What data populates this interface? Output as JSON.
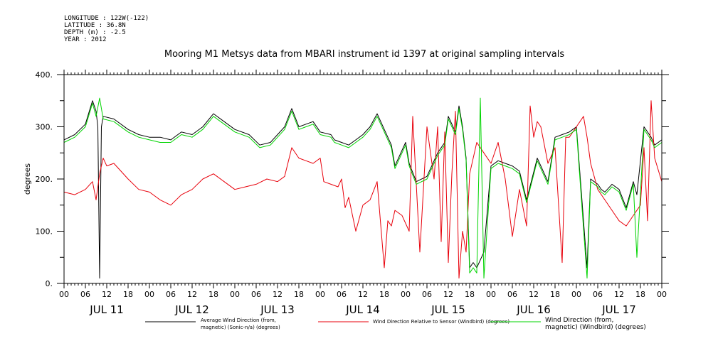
{
  "meta": {
    "longitude": "LONGITUDE : 122W(-122)",
    "latitude": "LATITUDE : 36.8N",
    "depth": "DEPTH (m) : -2.5",
    "year": "YEAR : 2012"
  },
  "chart_data": {
    "type": "line",
    "title": "Mooring M1 Metsys data from MBARI instrument id 1397 at original sampling intervals",
    "ylabel": "degrees",
    "xlabel": "",
    "ylim": [
      0,
      400
    ],
    "yticks": [
      "0.",
      "100.",
      "200.",
      "300.",
      "400."
    ],
    "xlim_hours": [
      0,
      168
    ],
    "hour_ticks": [
      "00",
      "06",
      "12",
      "18",
      "00",
      "06",
      "12",
      "18",
      "00",
      "06",
      "12",
      "18",
      "00",
      "06",
      "12",
      "18",
      "00",
      "06",
      "12",
      "18",
      "00",
      "06",
      "12",
      "18",
      "00",
      "06",
      "12",
      "18",
      "00"
    ],
    "date_labels": [
      "JUL 11",
      "JUL 12",
      "JUL 13",
      "JUL 14",
      "JUL 15",
      "JUL 16",
      "JUL 17"
    ],
    "grid": false,
    "legend_position": "bottom",
    "series": [
      {
        "name_line1": "Average Wind Direction (from,",
        "name_line2": "magnetic) (Sonic-n/a) (degrees)",
        "color": "#000000",
        "x": [
          0,
          3,
          6,
          8,
          9,
          9.5,
          10,
          10.5,
          11,
          14,
          18,
          21,
          24,
          27,
          30,
          33,
          36,
          39,
          42,
          45,
          48,
          52,
          55,
          58,
          60,
          62,
          64,
          66,
          68,
          70,
          72,
          75,
          76,
          78,
          80,
          82,
          84,
          86,
          88,
          90,
          92,
          93,
          96,
          97,
          99,
          102,
          105,
          107,
          108,
          110,
          111,
          112,
          113,
          114,
          115,
          116,
          118,
          120,
          122,
          124,
          126,
          128,
          130,
          133,
          136,
          138,
          140,
          142,
          144,
          147,
          148,
          150,
          151,
          152,
          154,
          156,
          158,
          160,
          161,
          163,
          165,
          166,
          168
        ],
        "y": [
          275,
          285,
          305,
          350,
          330,
          300,
          10,
          300,
          320,
          315,
          295,
          285,
          280,
          280,
          275,
          290,
          285,
          300,
          325,
          310,
          295,
          285,
          265,
          270,
          285,
          300,
          335,
          300,
          305,
          310,
          290,
          285,
          275,
          270,
          265,
          275,
          285,
          300,
          325,
          295,
          265,
          225,
          270,
          230,
          195,
          205,
          250,
          270,
          320,
          290,
          340,
          300,
          240,
          30,
          40,
          30,
          60,
          225,
          235,
          230,
          225,
          215,
          160,
          240,
          195,
          280,
          285,
          290,
          300,
          30,
          200,
          190,
          180,
          175,
          190,
          180,
          145,
          195,
          170,
          300,
          280,
          265,
          275
        ]
      },
      {
        "name_line1": "Wind Direction Relative to Sensor (Windbird) (degrees)",
        "name_line2": "",
        "color": "#e8000b",
        "x": [
          0,
          3,
          6,
          8,
          9,
          10,
          11,
          12,
          14,
          16,
          18,
          21,
          24,
          27,
          30,
          33,
          36,
          39,
          42,
          45,
          48,
          51,
          54,
          57,
          60,
          62,
          64,
          66,
          68,
          70,
          72,
          73,
          75,
          77,
          78,
          79,
          80,
          82,
          84,
          86,
          88,
          90,
          91,
          92,
          93,
          95,
          97,
          98,
          100,
          102,
          104,
          105,
          106,
          107,
          108,
          109,
          110,
          111,
          112,
          113,
          114,
          116,
          118,
          120,
          122,
          124,
          126,
          128,
          130,
          131,
          132,
          133,
          134,
          136,
          138,
          140,
          141,
          142,
          144,
          146,
          147,
          148,
          150,
          152,
          154,
          156,
          158,
          160,
          162,
          163,
          164,
          165,
          166,
          168
        ],
        "y": [
          175,
          170,
          180,
          195,
          160,
          210,
          240,
          225,
          230,
          215,
          200,
          180,
          175,
          160,
          150,
          170,
          180,
          200,
          210,
          195,
          180,
          185,
          190,
          200,
          195,
          205,
          260,
          240,
          235,
          230,
          240,
          195,
          190,
          185,
          200,
          145,
          165,
          100,
          150,
          160,
          195,
          30,
          120,
          110,
          140,
          130,
          100,
          320,
          60,
          300,
          200,
          300,
          80,
          290,
          40,
          210,
          330,
          10,
          100,
          60,
          210,
          270,
          250,
          230,
          270,
          200,
          90,
          180,
          110,
          340,
          280,
          310,
          300,
          230,
          260,
          40,
          280,
          280,
          300,
          320,
          280,
          230,
          180,
          160,
          140,
          120,
          110,
          130,
          150,
          260,
          120,
          350,
          240,
          195
        ]
      },
      {
        "name_line1": "Wind Direction (from,",
        "name_line2": "magnetic) (Windbird) (degrees)",
        "color": "#00d400",
        "x": [
          0,
          3,
          6,
          8,
          9,
          10,
          11,
          14,
          18,
          21,
          24,
          27,
          30,
          33,
          36,
          39,
          42,
          45,
          48,
          52,
          55,
          58,
          60,
          62,
          64,
          66,
          68,
          70,
          72,
          75,
          76,
          78,
          80,
          82,
          84,
          86,
          88,
          90,
          92,
          93,
          96,
          97,
          99,
          102,
          105,
          107,
          108,
          110,
          111,
          112,
          113,
          114,
          115,
          116,
          117,
          118,
          120,
          122,
          124,
          126,
          128,
          130,
          133,
          136,
          138,
          140,
          142,
          144,
          147,
          148,
          150,
          151,
          152,
          154,
          156,
          158,
          160,
          161,
          163,
          165,
          166,
          168
        ],
        "y": [
          270,
          280,
          300,
          345,
          320,
          355,
          315,
          310,
          290,
          280,
          275,
          270,
          270,
          285,
          280,
          295,
          320,
          305,
          290,
          280,
          260,
          265,
          280,
          295,
          330,
          295,
          300,
          305,
          285,
          280,
          270,
          265,
          260,
          270,
          280,
          295,
          320,
          290,
          260,
          220,
          265,
          225,
          190,
          200,
          245,
          265,
          315,
          285,
          335,
          295,
          235,
          20,
          30,
          20,
          355,
          10,
          220,
          230,
          225,
          220,
          210,
          155,
          235,
          190,
          275,
          280,
          285,
          295,
          10,
          195,
          185,
          175,
          170,
          185,
          175,
          140,
          190,
          50,
          295,
          275,
          260,
          270
        ]
      }
    ]
  }
}
